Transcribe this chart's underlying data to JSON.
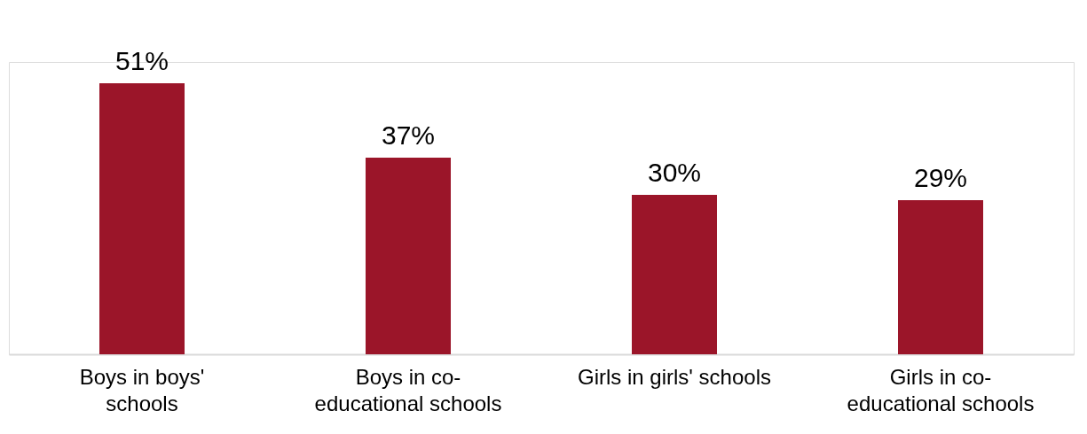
{
  "chart_data": {
    "type": "bar",
    "categories": [
      "Boys in boys' schools",
      "Boys in co-educational schools",
      "Girls in girls' schools",
      "Girls in co-educational schools"
    ],
    "values": [
      51,
      37,
      30,
      29
    ],
    "value_labels": [
      "51%",
      "37%",
      "30%",
      "29%"
    ],
    "color": "#9b1529"
  }
}
